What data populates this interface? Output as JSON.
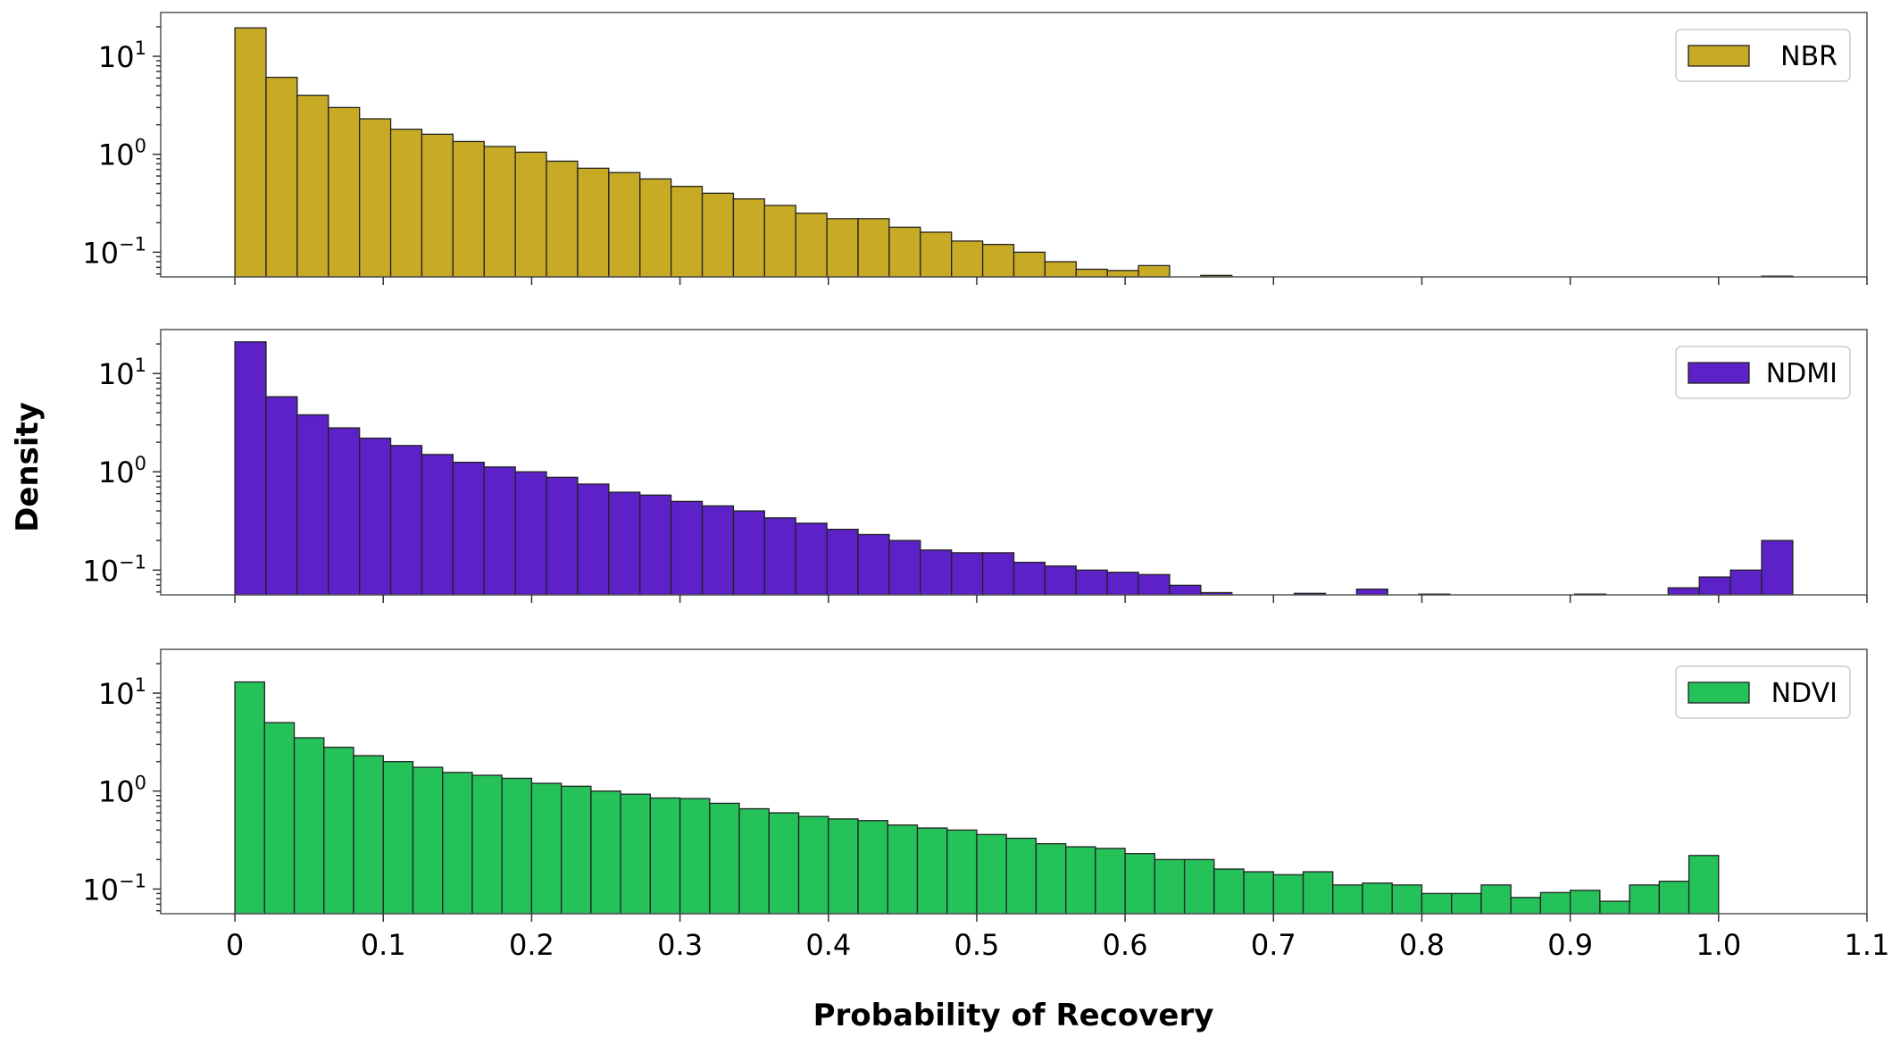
{
  "figure": {
    "xlabel": "Probability of Recovery",
    "ylabel": "Density"
  },
  "chart_data": [
    {
      "type": "bar",
      "series_name": "NBR",
      "color": "#c8ab25",
      "yscale": "log",
      "ylim": [
        0.056,
        28
      ],
      "xlim": [
        -0.05,
        1.1
      ],
      "yticks": [
        {
          "value": 10,
          "base": "10",
          "exp": "1"
        },
        {
          "value": 1,
          "base": "10",
          "exp": "0"
        },
        {
          "value": 0.1,
          "base": "10",
          "exp": "−1"
        }
      ],
      "xticks": [
        0,
        0.1,
        0.2,
        0.3,
        0.4,
        0.5,
        0.6,
        0.7,
        0.8,
        0.9,
        1.0,
        1.1
      ],
      "show_xtick_labels": false,
      "legend": "upper right",
      "bin_start": 0.0,
      "bin_width": 0.021,
      "values": [
        19.5,
        6.1,
        4.0,
        3.0,
        2.3,
        1.8,
        1.6,
        1.35,
        1.2,
        1.05,
        0.85,
        0.72,
        0.65,
        0.56,
        0.47,
        0.4,
        0.35,
        0.3,
        0.25,
        0.22,
        0.22,
        0.18,
        0.16,
        0.13,
        0.12,
        0.1,
        0.08,
        0.067,
        0.065,
        0.073,
        0,
        0.058,
        0,
        0,
        0,
        0,
        0,
        0,
        0,
        0,
        0,
        0,
        0,
        0,
        0,
        0,
        0,
        0,
        0,
        0.057
      ]
    },
    {
      "type": "bar",
      "series_name": "NDMI",
      "color": "#5c21c7",
      "yscale": "log",
      "ylim": [
        0.056,
        28
      ],
      "xlim": [
        -0.05,
        1.1
      ],
      "yticks": [
        {
          "value": 10,
          "base": "10",
          "exp": "1"
        },
        {
          "value": 1,
          "base": "10",
          "exp": "0"
        },
        {
          "value": 0.1,
          "base": "10",
          "exp": "−1"
        }
      ],
      "xticks": [
        0,
        0.1,
        0.2,
        0.3,
        0.4,
        0.5,
        0.6,
        0.7,
        0.8,
        0.9,
        1.0,
        1.1
      ],
      "show_xtick_labels": false,
      "legend": "upper right",
      "bin_start": 0.0,
      "bin_width": 0.021,
      "values": [
        21,
        5.8,
        3.8,
        2.8,
        2.2,
        1.85,
        1.5,
        1.25,
        1.12,
        1.0,
        0.88,
        0.75,
        0.62,
        0.58,
        0.5,
        0.45,
        0.4,
        0.34,
        0.3,
        0.26,
        0.23,
        0.2,
        0.16,
        0.15,
        0.15,
        0.12,
        0.11,
        0.1,
        0.095,
        0.09,
        0.07,
        0.059,
        0,
        0,
        0.058,
        0,
        0.064,
        0,
        0.057,
        0,
        0,
        0,
        0,
        0.057,
        0,
        0,
        0.066,
        0.085,
        0.1,
        0.2
      ]
    },
    {
      "type": "bar",
      "series_name": "NDVI",
      "color": "#25c25a",
      "yscale": "log",
      "ylim": [
        0.056,
        28
      ],
      "xlim": [
        -0.05,
        1.1
      ],
      "yticks": [
        {
          "value": 10,
          "base": "10",
          "exp": "1"
        },
        {
          "value": 1,
          "base": "10",
          "exp": "0"
        },
        {
          "value": 0.1,
          "base": "10",
          "exp": "−1"
        }
      ],
      "xticks": [
        0,
        0.1,
        0.2,
        0.3,
        0.4,
        0.5,
        0.6,
        0.7,
        0.8,
        0.9,
        1.0,
        1.1
      ],
      "xtick_labels": [
        "0",
        "0.1",
        "0.2",
        "0.3",
        "0.4",
        "0.5",
        "0.6",
        "0.7",
        "0.8",
        "0.9",
        "1.0",
        "1.1"
      ],
      "show_xtick_labels": true,
      "legend": "upper right",
      "bin_start": 0.0,
      "bin_width": 0.02,
      "values": [
        13,
        5.0,
        3.5,
        2.8,
        2.3,
        2.0,
        1.75,
        1.55,
        1.45,
        1.35,
        1.2,
        1.12,
        1.0,
        0.93,
        0.85,
        0.84,
        0.75,
        0.66,
        0.6,
        0.55,
        0.52,
        0.5,
        0.45,
        0.42,
        0.4,
        0.36,
        0.33,
        0.29,
        0.27,
        0.26,
        0.23,
        0.2,
        0.2,
        0.16,
        0.15,
        0.14,
        0.15,
        0.11,
        0.115,
        0.11,
        0.09,
        0.09,
        0.11,
        0.082,
        0.092,
        0.097,
        0.075,
        0.11,
        0.12,
        0.22
      ]
    }
  ]
}
